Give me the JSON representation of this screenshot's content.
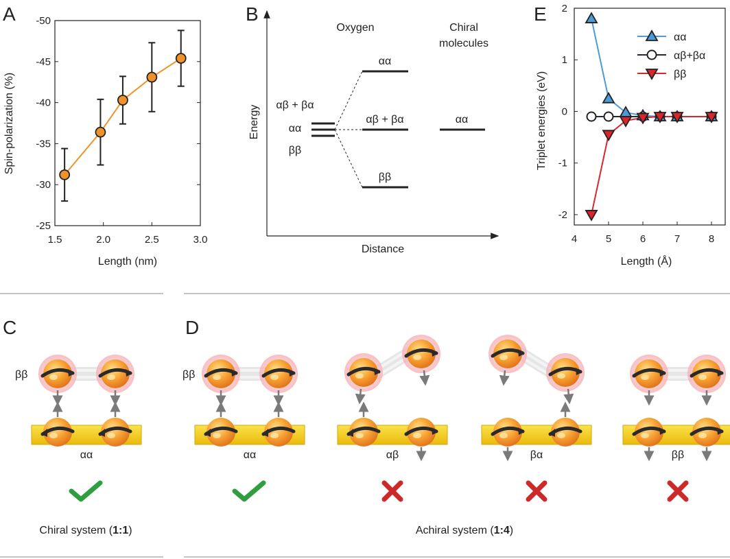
{
  "panels": {
    "A": {
      "letter": "A",
      "xlabel": "Length (nm)",
      "ylabel": "Spin-polarization (%)",
      "xticks": [
        "1.5",
        "2.0",
        "2.5",
        "3.0"
      ],
      "yticks": [
        "-25",
        "-30",
        "-35",
        "-40",
        "-45",
        "-50"
      ]
    },
    "B": {
      "letter": "B",
      "ylabel": "Energy",
      "xlabel": "Distance",
      "col_oxygen": "Oxygen",
      "col_chiral_line1": "Chiral",
      "col_chiral_line2": "molecules",
      "left_labels": [
        "αβ + βα",
        "αα",
        "ββ"
      ],
      "oxygen_levels": [
        "αα",
        "αβ + βα",
        "ββ"
      ],
      "chiral_level": "αα"
    },
    "E": {
      "letter": "E",
      "xlabel": "Length (Å)",
      "ylabel": "Triplet energies (eV)",
      "xticks": [
        "4",
        "5",
        "6",
        "7",
        "8"
      ],
      "yticks": [
        "2",
        "1",
        "0",
        "-1",
        "-2"
      ]
    },
    "C": {
      "letter": "C",
      "molecule_label": "ββ",
      "substrate_label": "αα",
      "caption_text": "Chiral system (",
      "caption_ratio": "1:1",
      "caption_end": ")"
    },
    "D": {
      "letter": "D",
      "molecule_label": "ββ",
      "configs": [
        {
          "label": "αα",
          "ok": true
        },
        {
          "label": "αβ",
          "ok": false
        },
        {
          "label": "βα",
          "ok": false
        },
        {
          "label": "ββ",
          "ok": false
        }
      ],
      "caption_text": "Achiral system (",
      "caption_ratio": "1:4",
      "caption_end": ")"
    }
  },
  "colors": {
    "orange": "#f0922b",
    "blue": "#4a9bd6",
    "red": "#d9262b",
    "gold": "#f5d20f",
    "check": "#2e9e3e",
    "cross": "#cc2a2a"
  },
  "chart_data": [
    {
      "panel": "A",
      "type": "line",
      "xlabel": "Length (nm)",
      "ylabel": "Spin-polarization (%)",
      "xlim": [
        1.5,
        3.0
      ],
      "ylim": [
        -25,
        -50
      ],
      "points": [
        {
          "x": 1.6,
          "y": -31.2,
          "err": 3.2
        },
        {
          "x": 1.97,
          "y": -36.4,
          "err": 4.0
        },
        {
          "x": 2.2,
          "y": -40.3,
          "err": 2.9
        },
        {
          "x": 2.5,
          "y": -43.1,
          "err": 4.2
        },
        {
          "x": 2.8,
          "y": -45.4,
          "err": 3.4
        }
      ]
    },
    {
      "panel": "E",
      "type": "line",
      "xlabel": "Length (Å)",
      "ylabel": "Triplet energies (eV)",
      "xlim": [
        4,
        8.4
      ],
      "ylim": [
        -2.2,
        2
      ],
      "legend_position": "top-right",
      "series": [
        {
          "name": "αα",
          "marker": "triangle-up",
          "color": "#4a9bd6",
          "x": [
            4.5,
            5,
            5.5,
            6,
            6.5,
            7,
            8
          ],
          "y": [
            1.8,
            0.25,
            -0.02,
            -0.08,
            -0.1,
            -0.1,
            -0.1
          ]
        },
        {
          "name": "αβ+βα",
          "marker": "circle",
          "color": "#ffffff",
          "x": [
            4.5,
            5,
            5.5,
            6,
            6.5,
            7,
            8
          ],
          "y": [
            -0.1,
            -0.1,
            -0.1,
            -0.1,
            -0.1,
            -0.1,
            -0.1
          ]
        },
        {
          "name": "ββ",
          "marker": "triangle-down",
          "color": "#d9262b",
          "x": [
            4.5,
            5,
            5.5,
            6,
            6.5,
            7,
            8
          ],
          "y": [
            -2.0,
            -0.45,
            -0.18,
            -0.12,
            -0.1,
            -0.1,
            -0.1
          ]
        }
      ]
    }
  ]
}
